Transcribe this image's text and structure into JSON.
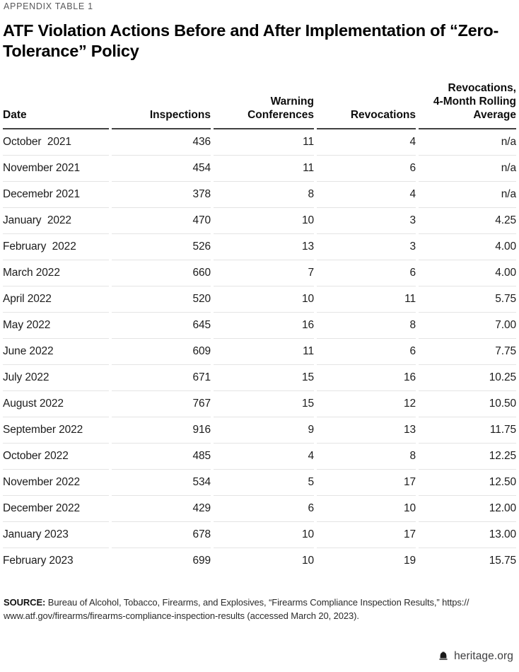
{
  "page": {
    "eyebrow": "APPENDIX TABLE 1",
    "title": "ATF Violation Actions Before and After Implementation of “Zero-Tolerance” Policy"
  },
  "table": {
    "columns": [
      {
        "id": "date",
        "lines": [
          "Date"
        ],
        "align": "left"
      },
      {
        "id": "inspections",
        "lines": [
          "Inspections"
        ],
        "align": "right"
      },
      {
        "id": "warning_conferences",
        "lines": [
          "Warning",
          "Conferences"
        ],
        "align": "right"
      },
      {
        "id": "revocations",
        "lines": [
          "Revocations"
        ],
        "align": "right"
      },
      {
        "id": "revocations_rolling_avg",
        "lines": [
          "Revocations,",
          "4-Month Rolling",
          "Average"
        ],
        "align": "right"
      }
    ],
    "rows": [
      {
        "date": "October  2021",
        "inspections": "436",
        "warning_conferences": "11",
        "revocations": "4",
        "revocations_rolling_avg": "n/a"
      },
      {
        "date": "November 2021",
        "inspections": "454",
        "warning_conferences": "11",
        "revocations": "6",
        "revocations_rolling_avg": "n/a"
      },
      {
        "date": "Decemebr 2021",
        "inspections": "378",
        "warning_conferences": "8",
        "revocations": "4",
        "revocations_rolling_avg": "n/a"
      },
      {
        "date": "January  2022",
        "inspections": "470",
        "warning_conferences": "10",
        "revocations": "3",
        "revocations_rolling_avg": "4.25"
      },
      {
        "date": "February  2022",
        "inspections": "526",
        "warning_conferences": "13",
        "revocations": "3",
        "revocations_rolling_avg": "4.00"
      },
      {
        "date": "March 2022",
        "inspections": "660",
        "warning_conferences": "7",
        "revocations": "6",
        "revocations_rolling_avg": "4.00"
      },
      {
        "date": "April 2022",
        "inspections": "520",
        "warning_conferences": "10",
        "revocations": "11",
        "revocations_rolling_avg": "5.75"
      },
      {
        "date": "May 2022",
        "inspections": "645",
        "warning_conferences": "16",
        "revocations": "8",
        "revocations_rolling_avg": "7.00"
      },
      {
        "date": "June 2022",
        "inspections": "609",
        "warning_conferences": "11",
        "revocations": "6",
        "revocations_rolling_avg": "7.75"
      },
      {
        "date": "July 2022",
        "inspections": "671",
        "warning_conferences": "15",
        "revocations": "16",
        "revocations_rolling_avg": "10.25"
      },
      {
        "date": "August 2022",
        "inspections": "767",
        "warning_conferences": "15",
        "revocations": "12",
        "revocations_rolling_avg": "10.50"
      },
      {
        "date": "September 2022",
        "inspections": "916",
        "warning_conferences": "9",
        "revocations": "13",
        "revocations_rolling_avg": "11.75"
      },
      {
        "date": "October 2022",
        "inspections": "485",
        "warning_conferences": "4",
        "revocations": "8",
        "revocations_rolling_avg": "12.25"
      },
      {
        "date": "November 2022",
        "inspections": "534",
        "warning_conferences": "5",
        "revocations": "17",
        "revocations_rolling_avg": "12.50"
      },
      {
        "date": "December 2022",
        "inspections": "429",
        "warning_conferences": "6",
        "revocations": "10",
        "revocations_rolling_avg": "12.00"
      },
      {
        "date": "January 2023",
        "inspections": "678",
        "warning_conferences": "10",
        "revocations": "17",
        "revocations_rolling_avg": "13.00"
      },
      {
        "date": "February 2023",
        "inspections": "699",
        "warning_conferences": "10",
        "revocations": "19",
        "revocations_rolling_avg": "15.75"
      }
    ]
  },
  "source": {
    "label": "SOURCE:",
    "line1_rest": " Bureau of Alcohol, Tobacco, Firearms, and Explosives, “Firearms Compliance Inspection Results,” https://",
    "line2": "www.atf.gov/firearms/firearms-compliance-inspection-results (accessed March 20, 2023)."
  },
  "footer": {
    "site": "heritage.org",
    "icon": "liberty-bell-icon"
  },
  "colors": {
    "header_rule": "#414141",
    "row_divider": "#e4e4e4",
    "eyebrow_text": "#58585a",
    "title_text": "#000000",
    "body_text": "#1c1c1c"
  }
}
